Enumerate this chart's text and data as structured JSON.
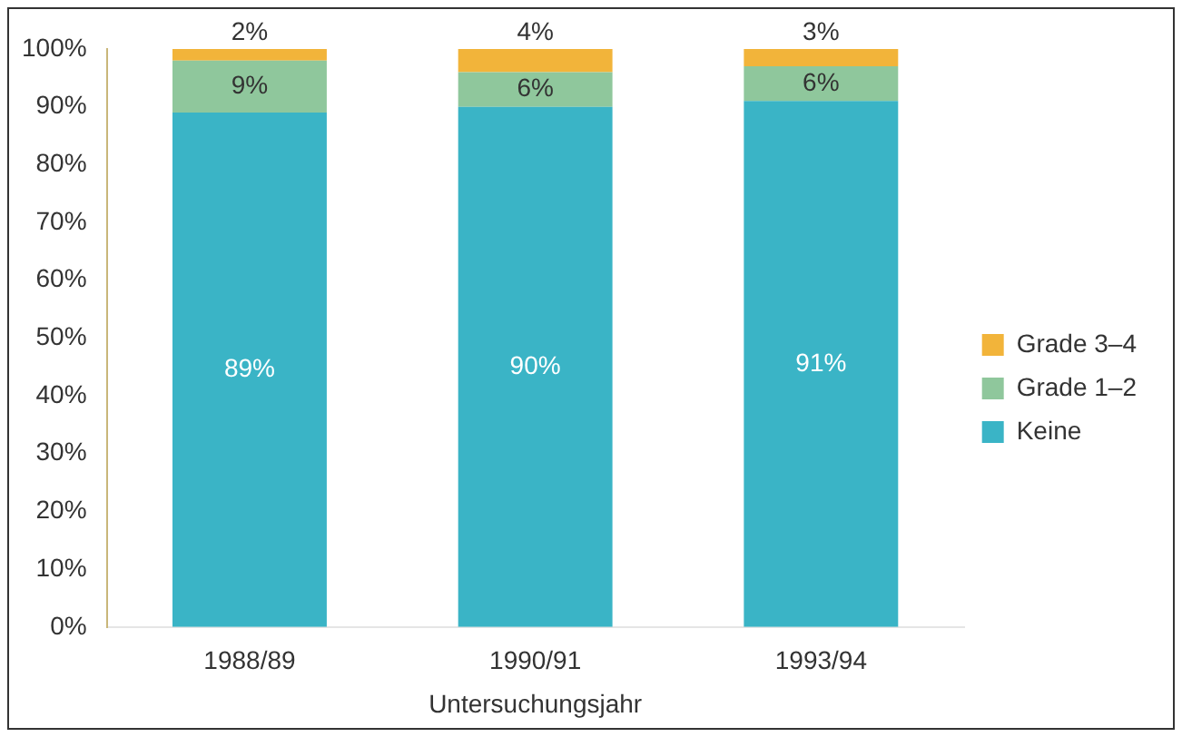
{
  "chart_data": {
    "type": "bar",
    "stacked": true,
    "categories": [
      "1988/89",
      "1990/91",
      "1993/94"
    ],
    "series": [
      {
        "name": "Keine",
        "color": "#3ab4c6",
        "values": [
          89,
          90,
          91
        ],
        "value_labels": [
          "89%",
          "90%",
          "91%"
        ]
      },
      {
        "name": "Grade 1–2",
        "color": "#8fc79c",
        "values": [
          9,
          6,
          6
        ],
        "value_labels": [
          "9%",
          "6%",
          "6%"
        ]
      },
      {
        "name": "Grade 3–4",
        "color": "#f2b43a",
        "values": [
          2,
          4,
          3
        ],
        "value_labels": [
          "2%",
          "4%",
          "3%"
        ]
      }
    ],
    "xlabel": "Untersuchungsjahr",
    "ylim": [
      0,
      100
    ],
    "yticks": [
      {
        "value": 0,
        "label": "0%"
      },
      {
        "value": 10,
        "label": "10%"
      },
      {
        "value": 20,
        "label": "20%"
      },
      {
        "value": 30,
        "label": "30%"
      },
      {
        "value": 40,
        "label": "40%"
      },
      {
        "value": 50,
        "label": "50%"
      },
      {
        "value": 60,
        "label": "60%"
      },
      {
        "value": 70,
        "label": "70%"
      },
      {
        "value": 80,
        "label": "80%"
      },
      {
        "value": 90,
        "label": "90%"
      },
      {
        "value": 100,
        "label": "100%"
      }
    ],
    "grid": false,
    "legend": "right"
  }
}
